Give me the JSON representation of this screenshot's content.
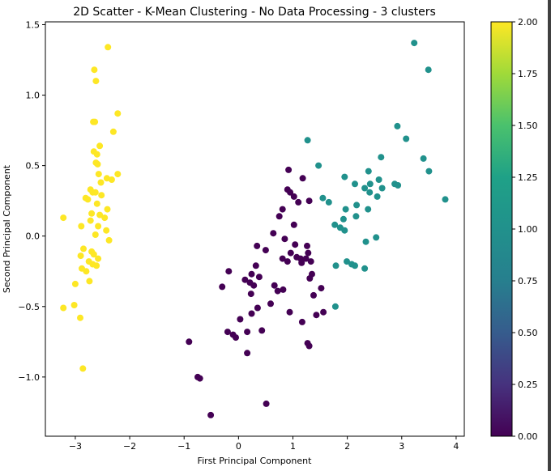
{
  "chart_data": {
    "type": "scatter",
    "title": "2D Scatter - K-Mean Clustering - No Data Processing - 3 clusters",
    "xlabel": "First Principal Component",
    "ylabel": "Second Principal Component",
    "xlim": [
      -3.55,
      4.15
    ],
    "ylim": [
      -1.42,
      1.52
    ],
    "grid": false,
    "colormap": "viridis",
    "xticks": [
      {
        "value": -3,
        "label": "−3"
      },
      {
        "value": -2,
        "label": "−2"
      },
      {
        "value": -1,
        "label": "−1"
      },
      {
        "value": 0,
        "label": "0"
      },
      {
        "value": 1,
        "label": "1"
      },
      {
        "value": 2,
        "label": "2"
      },
      {
        "value": 3,
        "label": "3"
      },
      {
        "value": 4,
        "label": "4"
      }
    ],
    "yticks": [
      {
        "value": -1.0,
        "label": "−1.0"
      },
      {
        "value": -0.5,
        "label": "−0.5"
      },
      {
        "value": 0.0,
        "label": "0.0"
      },
      {
        "value": 0.5,
        "label": "0.5"
      },
      {
        "value": 1.0,
        "label": "1.0"
      },
      {
        "value": 1.5,
        "label": "1.5"
      }
    ],
    "colorbar": {
      "range": [
        0.0,
        2.0
      ],
      "ticks": [
        {
          "value": 0.0,
          "label": "0.00"
        },
        {
          "value": 0.25,
          "label": "0.25"
        },
        {
          "value": 0.5,
          "label": "0.50"
        },
        {
          "value": 0.75,
          "label": "0.75"
        },
        {
          "value": 1.0,
          "label": "1.00"
        },
        {
          "value": 1.25,
          "label": "1.25"
        },
        {
          "value": 1.5,
          "label": "1.50"
        },
        {
          "value": 1.75,
          "label": "1.75"
        },
        {
          "value": 2.0,
          "label": "2.00"
        }
      ]
    },
    "cluster_colors": [
      "#440154",
      "#21918c",
      "#fde725"
    ],
    "points": [
      {
        "x": -2.4,
        "y": 1.34,
        "c": 2
      },
      {
        "x": -2.65,
        "y": 1.18,
        "c": 2
      },
      {
        "x": -2.62,
        "y": 1.1,
        "c": 2
      },
      {
        "x": -2.22,
        "y": 0.87,
        "c": 2
      },
      {
        "x": -2.64,
        "y": 0.81,
        "c": 2
      },
      {
        "x": -2.67,
        "y": 0.81,
        "c": 2
      },
      {
        "x": -2.3,
        "y": 0.74,
        "c": 2
      },
      {
        "x": -2.55,
        "y": 0.64,
        "c": 2
      },
      {
        "x": -2.66,
        "y": 0.6,
        "c": 2
      },
      {
        "x": -2.6,
        "y": 0.58,
        "c": 2
      },
      {
        "x": -2.62,
        "y": 0.52,
        "c": 2
      },
      {
        "x": -2.59,
        "y": 0.51,
        "c": 2
      },
      {
        "x": -2.57,
        "y": 0.44,
        "c": 2
      },
      {
        "x": -2.22,
        "y": 0.44,
        "c": 2
      },
      {
        "x": -2.42,
        "y": 0.41,
        "c": 2
      },
      {
        "x": -2.33,
        "y": 0.4,
        "c": 2
      },
      {
        "x": -2.53,
        "y": 0.38,
        "c": 2
      },
      {
        "x": -2.72,
        "y": 0.33,
        "c": 2
      },
      {
        "x": -2.68,
        "y": 0.31,
        "c": 2
      },
      {
        "x": -2.63,
        "y": 0.31,
        "c": 2
      },
      {
        "x": -2.52,
        "y": 0.29,
        "c": 2
      },
      {
        "x": -2.81,
        "y": 0.27,
        "c": 2
      },
      {
        "x": -2.77,
        "y": 0.26,
        "c": 2
      },
      {
        "x": -2.6,
        "y": 0.23,
        "c": 2
      },
      {
        "x": -2.41,
        "y": 0.19,
        "c": 2
      },
      {
        "x": -2.7,
        "y": 0.16,
        "c": 2
      },
      {
        "x": -2.55,
        "y": 0.15,
        "c": 2
      },
      {
        "x": -3.22,
        "y": 0.13,
        "c": 2
      },
      {
        "x": -2.46,
        "y": 0.13,
        "c": 2
      },
      {
        "x": -2.72,
        "y": 0.11,
        "c": 2
      },
      {
        "x": -2.89,
        "y": 0.07,
        "c": 2
      },
      {
        "x": -2.58,
        "y": 0.07,
        "c": 2
      },
      {
        "x": -2.43,
        "y": 0.04,
        "c": 2
      },
      {
        "x": -2.63,
        "y": 0.01,
        "c": 2
      },
      {
        "x": -2.38,
        "y": -0.03,
        "c": 2
      },
      {
        "x": -2.85,
        "y": -0.09,
        "c": 2
      },
      {
        "x": -2.7,
        "y": -0.11,
        "c": 2
      },
      {
        "x": -2.66,
        "y": -0.13,
        "c": 2
      },
      {
        "x": -2.9,
        "y": -0.14,
        "c": 2
      },
      {
        "x": -2.58,
        "y": -0.16,
        "c": 2
      },
      {
        "x": -2.75,
        "y": -0.18,
        "c": 2
      },
      {
        "x": -2.68,
        "y": -0.2,
        "c": 2
      },
      {
        "x": -2.61,
        "y": -0.21,
        "c": 2
      },
      {
        "x": -2.88,
        "y": -0.23,
        "c": 2
      },
      {
        "x": -2.8,
        "y": -0.25,
        "c": 2
      },
      {
        "x": -2.74,
        "y": -0.32,
        "c": 2
      },
      {
        "x": -3.0,
        "y": -0.34,
        "c": 2
      },
      {
        "x": -3.02,
        "y": -0.49,
        "c": 2
      },
      {
        "x": -3.22,
        "y": -0.51,
        "c": 2
      },
      {
        "x": -2.91,
        "y": -0.58,
        "c": 2
      },
      {
        "x": -2.86,
        "y": -0.94,
        "c": 2
      },
      {
        "x": 3.23,
        "y": 1.37,
        "c": 1
      },
      {
        "x": 3.49,
        "y": 1.18,
        "c": 1
      },
      {
        "x": 2.92,
        "y": 0.78,
        "c": 1
      },
      {
        "x": 3.08,
        "y": 0.69,
        "c": 1
      },
      {
        "x": 1.27,
        "y": 0.68,
        "c": 1
      },
      {
        "x": 2.62,
        "y": 0.56,
        "c": 1
      },
      {
        "x": 3.4,
        "y": 0.55,
        "c": 1
      },
      {
        "x": 1.47,
        "y": 0.5,
        "c": 1
      },
      {
        "x": 2.39,
        "y": 0.46,
        "c": 1
      },
      {
        "x": 3.5,
        "y": 0.46,
        "c": 1
      },
      {
        "x": 1.95,
        "y": 0.42,
        "c": 1
      },
      {
        "x": 2.58,
        "y": 0.4,
        "c": 1
      },
      {
        "x": 2.14,
        "y": 0.37,
        "c": 1
      },
      {
        "x": 2.42,
        "y": 0.37,
        "c": 1
      },
      {
        "x": 2.87,
        "y": 0.37,
        "c": 1
      },
      {
        "x": 2.93,
        "y": 0.36,
        "c": 1
      },
      {
        "x": 2.32,
        "y": 0.34,
        "c": 1
      },
      {
        "x": 2.64,
        "y": 0.34,
        "c": 1
      },
      {
        "x": 2.41,
        "y": 0.31,
        "c": 1
      },
      {
        "x": 2.55,
        "y": 0.28,
        "c": 1
      },
      {
        "x": 1.55,
        "y": 0.27,
        "c": 1
      },
      {
        "x": 3.8,
        "y": 0.26,
        "c": 1
      },
      {
        "x": 1.66,
        "y": 0.24,
        "c": 1
      },
      {
        "x": 2.17,
        "y": 0.22,
        "c": 1
      },
      {
        "x": 1.97,
        "y": 0.19,
        "c": 1
      },
      {
        "x": 2.38,
        "y": 0.19,
        "c": 1
      },
      {
        "x": 2.16,
        "y": 0.14,
        "c": 1
      },
      {
        "x": 1.93,
        "y": 0.12,
        "c": 1
      },
      {
        "x": 1.77,
        "y": 0.08,
        "c": 1
      },
      {
        "x": 1.87,
        "y": 0.06,
        "c": 1
      },
      {
        "x": 1.95,
        "y": 0.04,
        "c": 1
      },
      {
        "x": 2.53,
        "y": -0.01,
        "c": 1
      },
      {
        "x": 2.34,
        "y": -0.04,
        "c": 1
      },
      {
        "x": 1.99,
        "y": -0.18,
        "c": 1
      },
      {
        "x": 2.08,
        "y": -0.2,
        "c": 1
      },
      {
        "x": 1.79,
        "y": -0.21,
        "c": 1
      },
      {
        "x": 2.14,
        "y": -0.21,
        "c": 1
      },
      {
        "x": 2.32,
        "y": -0.23,
        "c": 1
      },
      {
        "x": 1.78,
        "y": -0.5,
        "c": 1
      },
      {
        "x": 0.92,
        "y": 0.47,
        "c": 0
      },
      {
        "x": 1.18,
        "y": 0.41,
        "c": 0
      },
      {
        "x": 0.9,
        "y": 0.33,
        "c": 0
      },
      {
        "x": 0.95,
        "y": 0.31,
        "c": 0
      },
      {
        "x": 1.02,
        "y": 0.28,
        "c": 0
      },
      {
        "x": 1.3,
        "y": 0.25,
        "c": 0
      },
      {
        "x": 1.1,
        "y": 0.24,
        "c": 0
      },
      {
        "x": 0.81,
        "y": 0.19,
        "c": 0
      },
      {
        "x": 0.75,
        "y": 0.14,
        "c": 0
      },
      {
        "x": 1.02,
        "y": 0.08,
        "c": 0
      },
      {
        "x": 0.64,
        "y": 0.02,
        "c": 0
      },
      {
        "x": 0.85,
        "y": -0.02,
        "c": 0
      },
      {
        "x": 1.04,
        "y": -0.06,
        "c": 0
      },
      {
        "x": 0.34,
        "y": -0.07,
        "c": 0
      },
      {
        "x": 1.26,
        "y": -0.07,
        "c": 0
      },
      {
        "x": 0.5,
        "y": -0.1,
        "c": 0
      },
      {
        "x": 0.96,
        "y": -0.12,
        "c": 0
      },
      {
        "x": 1.28,
        "y": -0.12,
        "c": 0
      },
      {
        "x": 1.07,
        "y": -0.15,
        "c": 0
      },
      {
        "x": 0.81,
        "y": -0.16,
        "c": 0
      },
      {
        "x": 1.14,
        "y": -0.16,
        "c": 0
      },
      {
        "x": 1.24,
        "y": -0.16,
        "c": 0
      },
      {
        "x": 0.9,
        "y": -0.18,
        "c": 0
      },
      {
        "x": 1.33,
        "y": -0.18,
        "c": 0
      },
      {
        "x": 1.16,
        "y": -0.19,
        "c": 0
      },
      {
        "x": 0.32,
        "y": -0.21,
        "c": 0
      },
      {
        "x": -0.18,
        "y": -0.25,
        "c": 0
      },
      {
        "x": 0.24,
        "y": -0.27,
        "c": 0
      },
      {
        "x": 1.35,
        "y": -0.27,
        "c": 0
      },
      {
        "x": 0.38,
        "y": -0.29,
        "c": 0
      },
      {
        "x": 1.31,
        "y": -0.3,
        "c": 0
      },
      {
        "x": 0.12,
        "y": -0.31,
        "c": 0
      },
      {
        "x": 0.21,
        "y": -0.33,
        "c": 0
      },
      {
        "x": 0.28,
        "y": -0.35,
        "c": 0
      },
      {
        "x": 0.66,
        "y": -0.35,
        "c": 0
      },
      {
        "x": -0.3,
        "y": -0.36,
        "c": 0
      },
      {
        "x": 1.52,
        "y": -0.37,
        "c": 0
      },
      {
        "x": 0.82,
        "y": -0.38,
        "c": 0
      },
      {
        "x": 0.72,
        "y": -0.39,
        "c": 0
      },
      {
        "x": 0.23,
        "y": -0.41,
        "c": 0
      },
      {
        "x": 1.38,
        "y": -0.42,
        "c": 0
      },
      {
        "x": 0.59,
        "y": -0.48,
        "c": 0
      },
      {
        "x": 0.35,
        "y": -0.51,
        "c": 0
      },
      {
        "x": 1.56,
        "y": -0.54,
        "c": 0
      },
      {
        "x": 0.94,
        "y": -0.54,
        "c": 0
      },
      {
        "x": 0.24,
        "y": -0.55,
        "c": 0
      },
      {
        "x": 1.43,
        "y": -0.56,
        "c": 0
      },
      {
        "x": 0.03,
        "y": -0.59,
        "c": 0
      },
      {
        "x": 1.17,
        "y": -0.61,
        "c": 0
      },
      {
        "x": 0.43,
        "y": -0.67,
        "c": 0
      },
      {
        "x": 0.16,
        "y": -0.68,
        "c": 0
      },
      {
        "x": -0.2,
        "y": -0.68,
        "c": 0
      },
      {
        "x": -0.1,
        "y": -0.7,
        "c": 0
      },
      {
        "x": -0.05,
        "y": -0.72,
        "c": 0
      },
      {
        "x": -0.91,
        "y": -0.75,
        "c": 0
      },
      {
        "x": 1.27,
        "y": -0.76,
        "c": 0
      },
      {
        "x": 1.3,
        "y": -0.78,
        "c": 0
      },
      {
        "x": 0.16,
        "y": -0.83,
        "c": 0
      },
      {
        "x": -0.75,
        "y": -1.0,
        "c": 0
      },
      {
        "x": -0.71,
        "y": -1.01,
        "c": 0
      },
      {
        "x": 0.51,
        "y": -1.19,
        "c": 0
      },
      {
        "x": -0.51,
        "y": -1.27,
        "c": 0
      }
    ]
  }
}
